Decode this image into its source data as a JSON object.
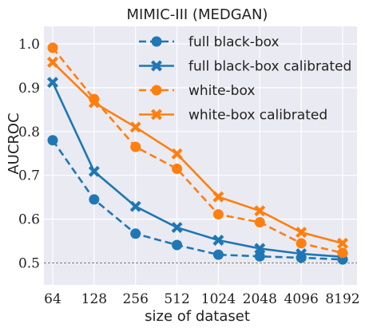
{
  "chart_data": {
    "type": "line",
    "title": "MIMIC-III (MEDGAN)",
    "xlabel": "size of dataset",
    "ylabel": "AUCROC",
    "categories": [
      "64",
      "128",
      "256",
      "512",
      "1024",
      "2048",
      "4096",
      "8192"
    ],
    "ylim": [
      0.45,
      1.04
    ],
    "yticks": [
      "0.5",
      "0.6",
      "0.7",
      "0.8",
      "0.9",
      "1.0"
    ],
    "grid": true,
    "legend_position": "top-right",
    "reference_line": 0.5,
    "series": [
      {
        "name": "full black-box",
        "color": "#1f77b4",
        "style": "dashed",
        "marker": "circle",
        "values": [
          0.78,
          0.645,
          0.567,
          0.541,
          0.519,
          0.515,
          0.512,
          0.508
        ]
      },
      {
        "name": "full black-box calibrated",
        "color": "#1f77b4",
        "style": "solid",
        "marker": "x",
        "values": [
          0.912,
          0.709,
          0.629,
          0.581,
          0.552,
          0.533,
          0.521,
          0.514
        ]
      },
      {
        "name": "white-box",
        "color": "#ff7f0e",
        "style": "dashed",
        "marker": "circle",
        "values": [
          0.991,
          0.874,
          0.765,
          0.715,
          0.611,
          0.593,
          0.545,
          0.523
        ]
      },
      {
        "name": "white-box calibrated",
        "color": "#ff7f0e",
        "style": "solid",
        "marker": "x",
        "values": [
          0.958,
          0.866,
          0.81,
          0.749,
          0.651,
          0.619,
          0.57,
          0.545
        ]
      }
    ]
  }
}
